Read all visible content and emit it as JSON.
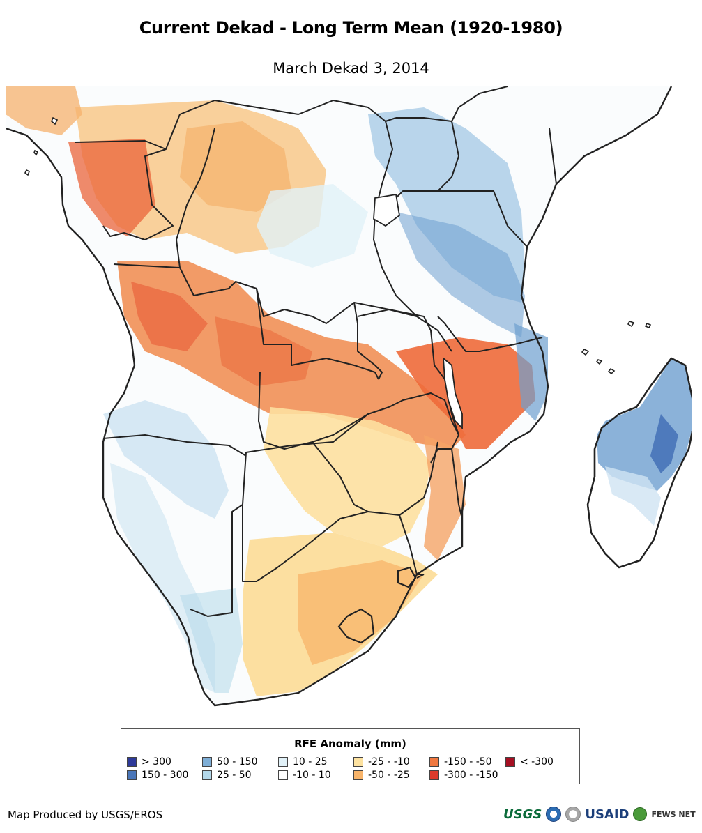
{
  "title": "Current Dekad - Long Term Mean (1920-1980)",
  "subtitle": "March Dekad 3, 2014",
  "legend": {
    "title": "RFE Anomaly (mm)",
    "items": [
      {
        "label": "> 300",
        "color": "#2e3a9a"
      },
      {
        "label": "150 - 300",
        "color": "#4a76b8"
      },
      {
        "label": "50 - 150",
        "color": "#7eaed6"
      },
      {
        "label": "25 - 50",
        "color": "#b3d8ea"
      },
      {
        "label": "10 - 25",
        "color": "#e1f1f8"
      },
      {
        "label": "-10 - 10",
        "color": "#ffffff"
      },
      {
        "label": "-25 - -10",
        "color": "#fde2a0"
      },
      {
        "label": "-50 - -25",
        "color": "#f8b46a"
      },
      {
        "label": "-150 - -50",
        "color": "#f07840"
      },
      {
        "label": "-300 - -150",
        "color": "#dc3b2c"
      },
      {
        "label": "< -300",
        "color": "#a50f22"
      }
    ]
  },
  "credit": "Map Produced by USGS/EROS",
  "logos": {
    "usgs": "USGS",
    "usaid": "USAID",
    "fews": "FEWS NET"
  }
}
